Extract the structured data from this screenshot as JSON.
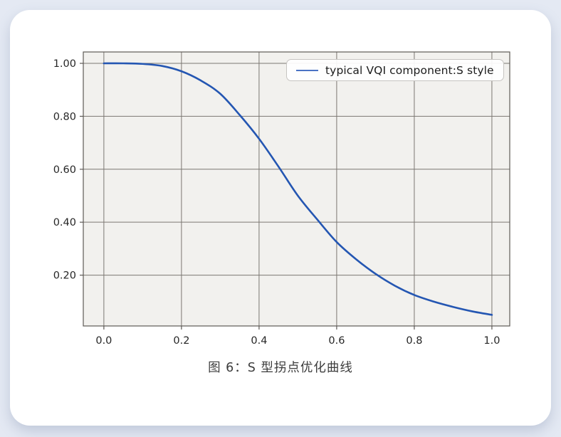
{
  "page": {
    "background_color": "#e4e9f3",
    "card_color": "#ffffff"
  },
  "caption": {
    "text": "图 6：S 型拐点优化曲线"
  },
  "chart_data": {
    "type": "line",
    "title": "",
    "xlabel": "",
    "ylabel": "",
    "grid": true,
    "legend_position": "upper right",
    "plot_background": "#f2f1ee",
    "grid_color": "#7b7772",
    "spine_color": "#5d5955",
    "tick_label_color": "#262626",
    "xlim": [
      -0.053,
      1.046
    ],
    "ylim": [
      0.008,
      1.043
    ],
    "x_ticks": {
      "values": [
        0.0,
        0.2,
        0.4,
        0.6,
        0.8,
        1.0
      ],
      "labels": [
        "0.0",
        "0.2",
        "0.4",
        "0.6",
        "0.8",
        "1.0"
      ]
    },
    "y_ticks": {
      "values": [
        1.0,
        0.8,
        0.6,
        0.4,
        0.2
      ],
      "labels": [
        "1.00",
        "0.80",
        "0.60",
        "0.40",
        "0.20"
      ]
    },
    "series": [
      {
        "name": "typical VQI component:S style",
        "color": "#2456b2",
        "line_width": 2.6,
        "x": [
          0.0,
          0.05,
          0.1,
          0.15,
          0.2,
          0.25,
          0.3,
          0.35,
          0.4,
          0.45,
          0.5,
          0.55,
          0.6,
          0.65,
          0.7,
          0.75,
          0.8,
          0.85,
          0.9,
          0.95,
          1.0
        ],
        "y": [
          1.0,
          1.0,
          0.998,
          0.99,
          0.97,
          0.935,
          0.885,
          0.805,
          0.715,
          0.61,
          0.5,
          0.41,
          0.325,
          0.26,
          0.205,
          0.16,
          0.125,
          0.1,
          0.08,
          0.063,
          0.05
        ]
      }
    ]
  }
}
